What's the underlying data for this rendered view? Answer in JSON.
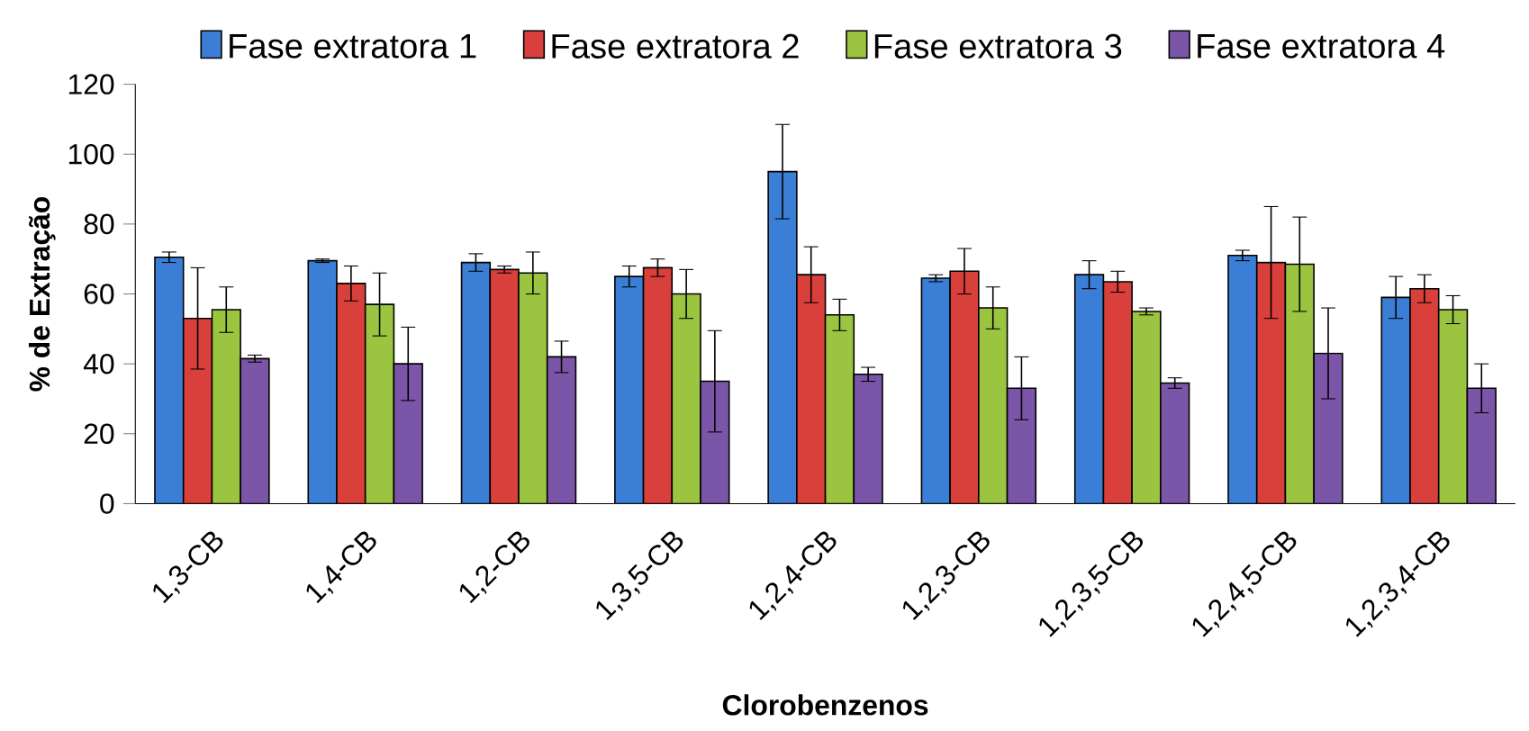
{
  "chart_data": {
    "type": "bar",
    "xlabel": "Clorobenzenos",
    "ylabel": "% de Extração",
    "categories": [
      "1,3-CB",
      "1,4-CB",
      "1,2-CB",
      "1,3,5-CB",
      "1,2,4-CB",
      "1,2,3-CB",
      "1,2,3,5-CB",
      "1,2,4,5-CB",
      "1,2,3,4-CB"
    ],
    "series": [
      {
        "name": "Fase extratora 1",
        "color": "#3a7fd5",
        "values": [
          70.5,
          69.5,
          69,
          65,
          95,
          64.5,
          65.5,
          71,
          59
        ],
        "errors": [
          1.5,
          0.5,
          2.5,
          3,
          13.5,
          1,
          4,
          1.5,
          6
        ]
      },
      {
        "name": "Fase extratora 2",
        "color": "#d9403b",
        "values": [
          53,
          63,
          67,
          67.5,
          65.5,
          66.5,
          63.5,
          69,
          61.5
        ],
        "errors": [
          14.5,
          5,
          1,
          2.5,
          8,
          6.5,
          3,
          16,
          4
        ]
      },
      {
        "name": "Fase extratora 3",
        "color": "#9bc540",
        "values": [
          55.5,
          57,
          66,
          60,
          54,
          56,
          55,
          68.5,
          55.5
        ],
        "errors": [
          6.5,
          9,
          6,
          7,
          4.5,
          6,
          1,
          13.5,
          4
        ]
      },
      {
        "name": "Fase extratora 4",
        "color": "#7b55a8",
        "values": [
          41.5,
          40,
          42,
          35,
          37,
          33,
          34.5,
          43,
          33
        ],
        "errors": [
          1,
          10.5,
          4.5,
          14.5,
          2,
          9,
          1.5,
          13,
          7
        ]
      }
    ],
    "ylim": [
      0,
      120
    ],
    "yticks": [
      0,
      20,
      40,
      60,
      80,
      100,
      120
    ],
    "legend": "top",
    "grid": false
  }
}
